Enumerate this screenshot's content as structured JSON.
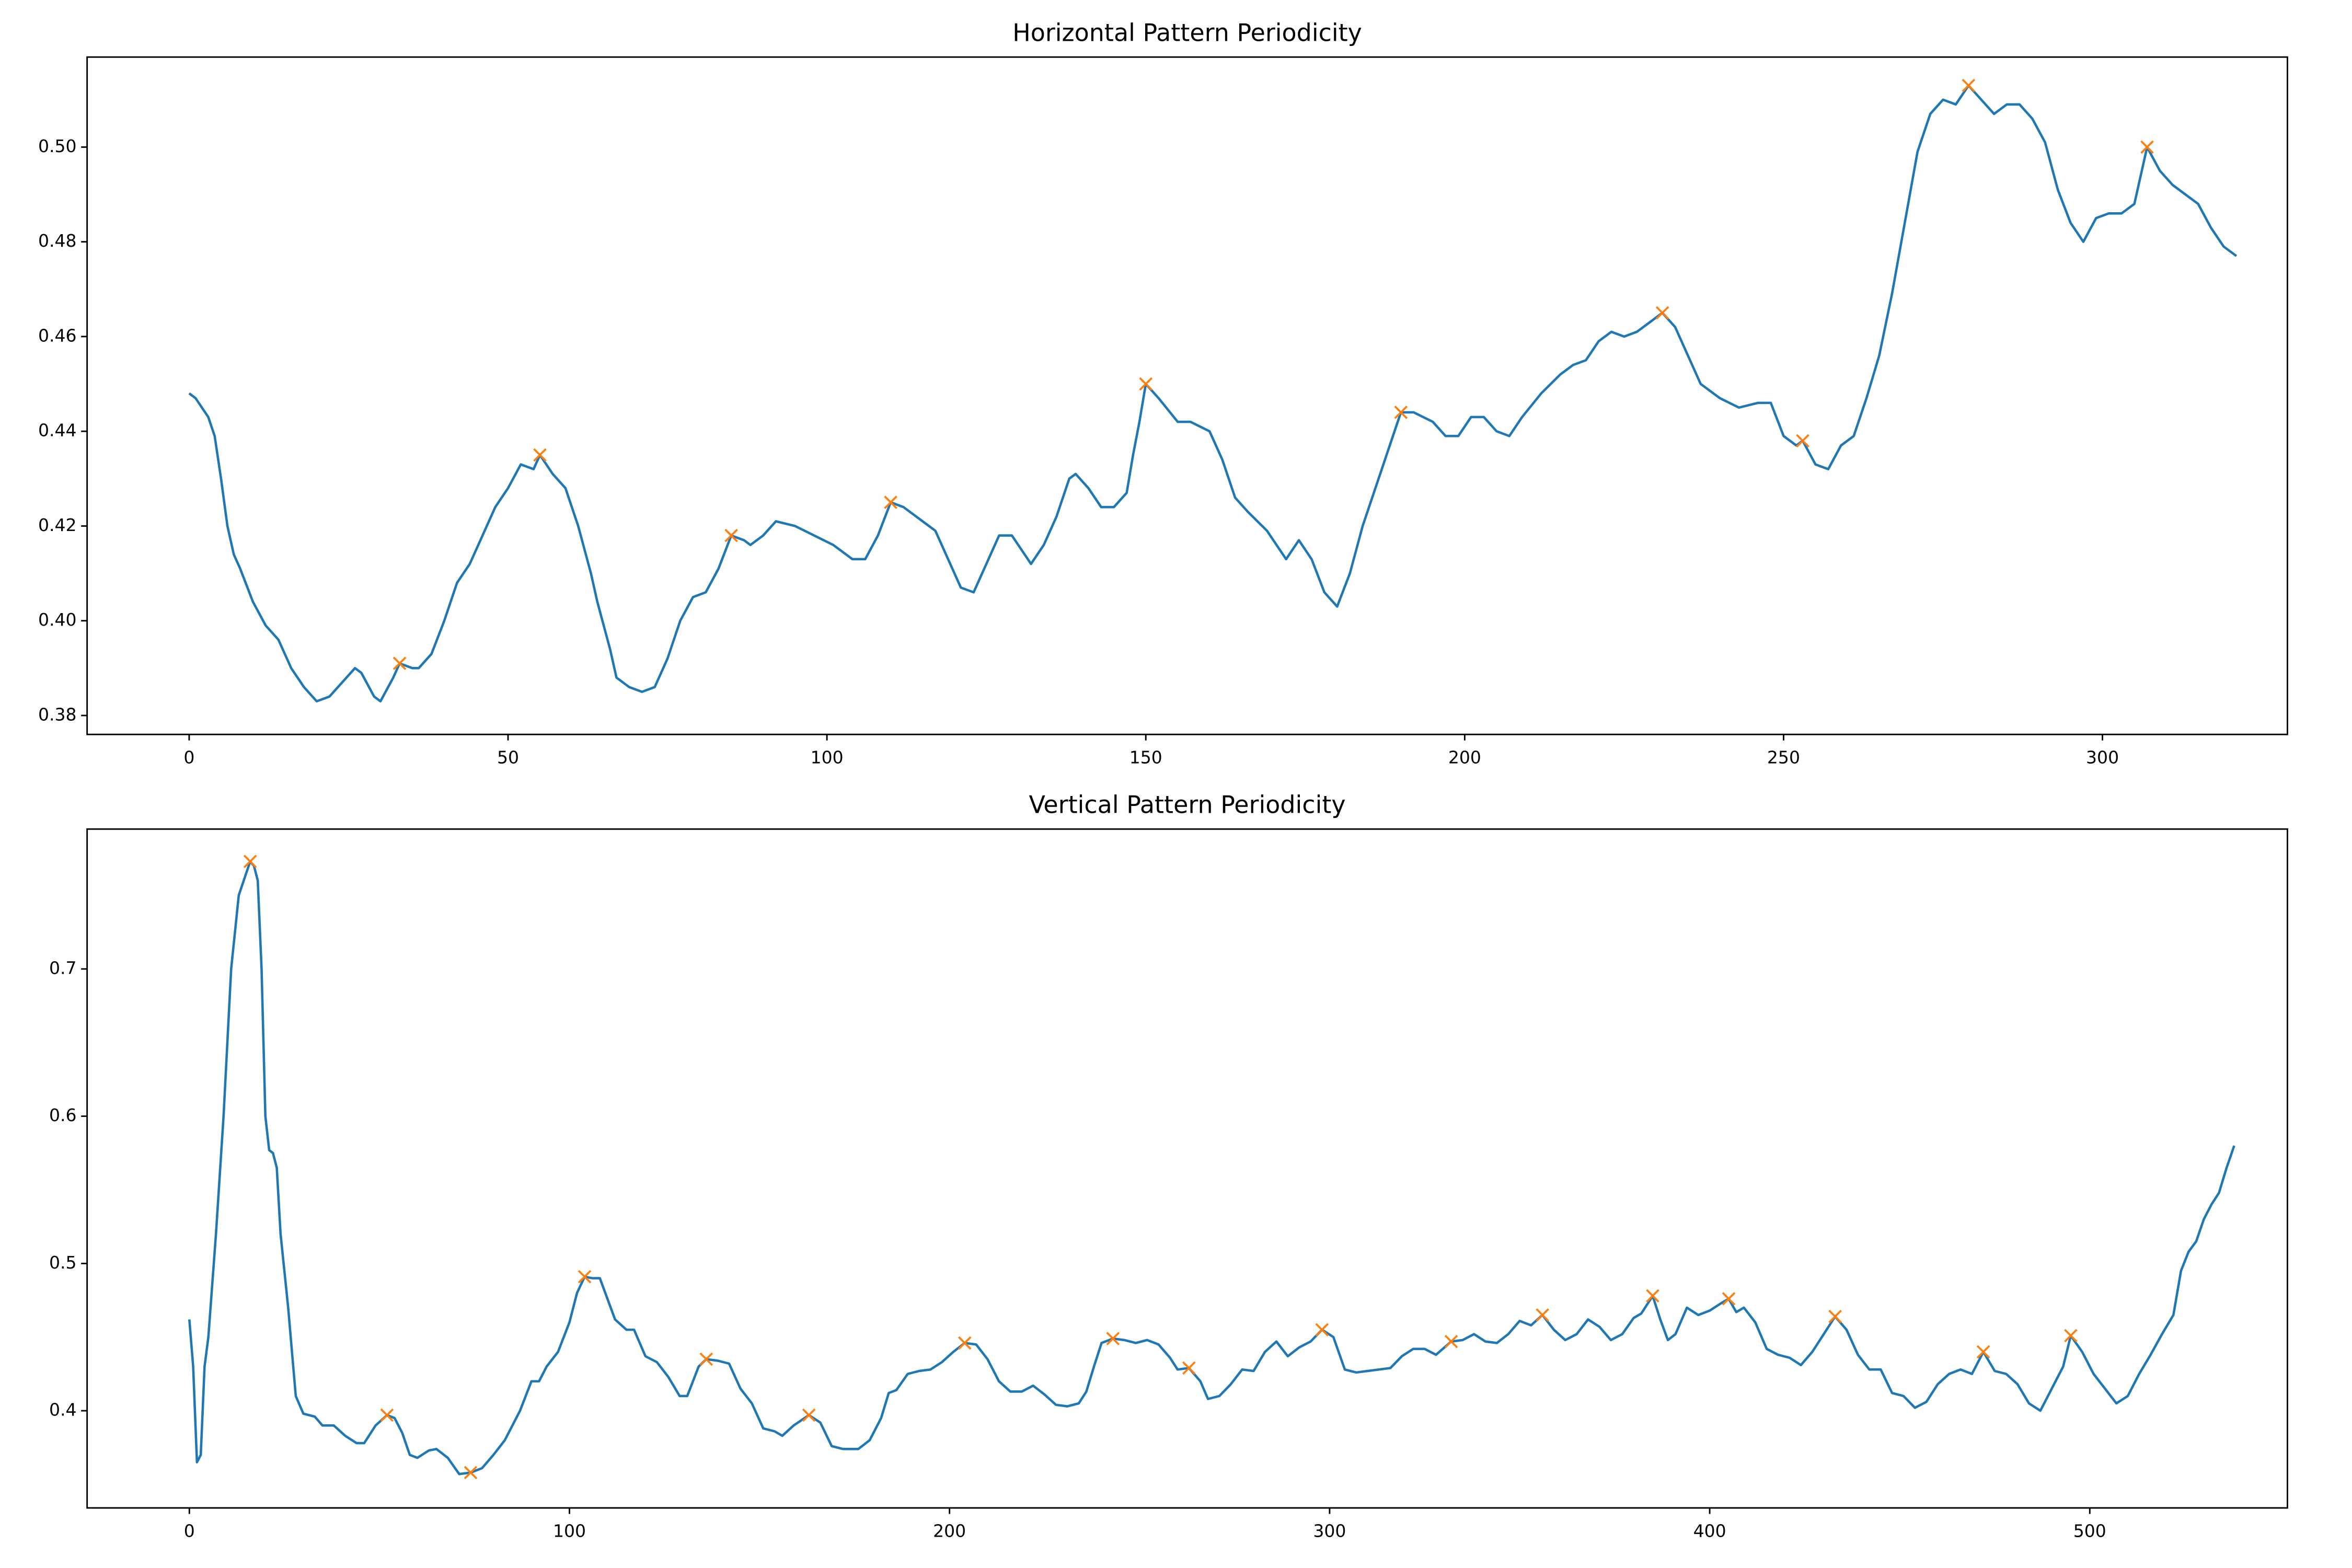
{
  "chart_data": [
    {
      "type": "line",
      "title": "Horizontal Pattern Periodicity",
      "xlim": [
        -16,
        329
      ],
      "xticks": [
        0,
        50,
        100,
        150,
        200,
        250,
        300
      ],
      "ylim": [
        0.376,
        0.519
      ],
      "yticks": [
        0.38,
        {
          "value": 0.4,
          "label": "0.40"
        },
        0.42,
        0.44,
        0.46,
        0.48,
        {
          "value": 0.5,
          "label": "0.50"
        }
      ],
      "series": [
        {
          "color": "#1f77b4",
          "x": [
            0,
            1,
            3,
            4,
            5,
            6,
            7,
            8,
            10,
            12,
            14,
            16,
            18,
            20,
            22,
            24,
            26,
            27,
            29,
            30,
            32,
            33,
            35,
            36,
            38,
            40,
            42,
            44,
            46,
            48,
            50,
            52,
            54,
            55,
            57,
            59,
            61,
            63,
            64,
            66,
            67,
            69,
            71,
            73,
            75,
            77,
            79,
            81,
            83,
            85,
            87,
            88,
            90,
            92,
            95,
            98,
            101,
            104,
            106,
            108,
            110,
            112,
            115,
            117,
            119,
            121,
            123,
            125,
            127,
            129,
            131,
            132,
            134,
            136,
            138,
            139,
            141,
            143,
            145,
            147,
            148,
            149,
            150,
            152,
            155,
            157,
            160,
            162,
            164,
            166,
            169,
            171,
            172,
            174,
            176,
            178,
            180,
            182,
            184,
            186,
            188,
            190,
            192,
            195,
            197,
            199,
            201,
            203,
            205,
            207,
            209,
            212,
            215,
            217,
            219,
            221,
            223,
            225,
            227,
            229,
            231,
            233,
            235,
            237,
            240,
            243,
            246,
            248,
            250,
            252,
            253,
            255,
            257,
            259,
            261,
            263,
            265,
            267,
            269,
            271,
            273,
            275,
            277,
            279,
            281,
            283,
            285,
            287,
            289,
            291,
            293,
            295,
            297,
            299,
            301,
            303,
            305,
            307,
            309,
            311,
            313,
            315,
            317,
            319,
            321
          ],
          "values": [
            0.448,
            0.447,
            0.443,
            0.439,
            0.43,
            0.42,
            0.414,
            0.411,
            0.404,
            0.399,
            0.396,
            0.39,
            0.386,
            0.383,
            0.384,
            0.387,
            0.39,
            0.389,
            0.384,
            0.383,
            0.388,
            0.391,
            0.39,
            0.39,
            0.393,
            0.4,
            0.408,
            0.412,
            0.418,
            0.424,
            0.428,
            0.433,
            0.432,
            0.435,
            0.431,
            0.428,
            0.42,
            0.41,
            0.404,
            0.394,
            0.388,
            0.386,
            0.385,
            0.386,
            0.392,
            0.4,
            0.405,
            0.406,
            0.411,
            0.418,
            0.417,
            0.416,
            0.418,
            0.421,
            0.42,
            0.418,
            0.416,
            0.413,
            0.413,
            0.418,
            0.425,
            0.424,
            0.421,
            0.419,
            0.413,
            0.407,
            0.406,
            0.412,
            0.418,
            0.418,
            0.414,
            0.412,
            0.416,
            0.422,
            0.43,
            0.431,
            0.428,
            0.424,
            0.424,
            0.427,
            0.435,
            0.442,
            0.45,
            0.447,
            0.442,
            0.442,
            0.44,
            0.434,
            0.426,
            0.423,
            0.419,
            0.415,
            0.413,
            0.417,
            0.413,
            0.406,
            0.403,
            0.41,
            0.42,
            0.428,
            0.436,
            0.444,
            0.444,
            0.442,
            0.439,
            0.439,
            0.443,
            0.443,
            0.44,
            0.439,
            0.443,
            0.448,
            0.452,
            0.454,
            0.455,
            0.459,
            0.461,
            0.46,
            0.461,
            0.463,
            0.465,
            0.462,
            0.456,
            0.45,
            0.447,
            0.445,
            0.446,
            0.446,
            0.439,
            0.437,
            0.438,
            0.433,
            0.432,
            0.437,
            0.439,
            0.447,
            0.456,
            0.469,
            0.484,
            0.499,
            0.507,
            0.51,
            0.509,
            0.513,
            0.51,
            0.507,
            0.509,
            0.509,
            0.506,
            0.501,
            0.491,
            0.484,
            0.48,
            0.485,
            0.486,
            0.486,
            0.488,
            0.5,
            0.495,
            0.492,
            0.49,
            0.488,
            0.483,
            0.479,
            0.477
          ]
        }
      ],
      "markers": {
        "color": "#ff7f0e",
        "x": [
          33,
          55,
          85,
          110,
          150,
          190,
          231,
          253,
          279,
          307
        ],
        "values": [
          0.391,
          0.435,
          0.418,
          0.425,
          0.45,
          0.444,
          0.465,
          0.438,
          0.513,
          0.5
        ]
      }
    },
    {
      "type": "line",
      "title": "Vertical Pattern Periodicity",
      "xlim": [
        -26.9,
        552
      ],
      "xticks": [
        0,
        100,
        200,
        300,
        400,
        500
      ],
      "ylim": [
        0.334,
        0.795
      ],
      "yticks": [
        0.4,
        0.5,
        0.6,
        0.7
      ],
      "series": [
        {
          "color": "#1f77b4",
          "x": [
            0,
            1,
            2,
            3,
            4,
            5,
            7,
            9,
            11,
            13,
            16,
            17,
            18,
            19,
            20,
            21,
            22,
            23,
            24,
            26,
            28,
            30,
            33,
            35,
            38,
            41,
            44,
            46,
            49,
            52,
            54,
            56,
            58,
            60,
            63,
            65,
            68,
            71,
            74,
            77,
            80,
            83,
            87,
            90,
            92,
            94,
            97,
            100,
            102,
            104,
            106,
            108,
            110,
            112,
            115,
            117,
            120,
            123,
            126,
            129,
            131,
            134,
            136,
            139,
            142,
            145,
            148,
            151,
            154,
            156,
            159,
            163,
            166,
            169,
            172,
            176,
            179,
            182,
            184,
            186,
            189,
            192,
            195,
            198,
            201,
            204,
            207,
            210,
            213,
            216,
            219,
            222,
            225,
            228,
            231,
            234,
            236,
            238,
            240,
            243,
            246,
            249,
            252,
            255,
            258,
            260,
            263,
            266,
            268,
            271,
            274,
            277,
            280,
            283,
            286,
            289,
            292,
            295,
            298,
            301,
            304,
            307,
            310,
            313,
            316,
            319,
            322,
            325,
            328,
            332,
            335,
            338,
            341,
            344,
            347,
            350,
            353,
            356,
            359,
            362,
            365,
            368,
            371,
            374,
            377,
            380,
            382,
            385,
            387,
            389,
            391,
            394,
            397,
            400,
            403,
            405,
            407,
            409,
            412,
            415,
            418,
            421,
            424,
            427,
            430,
            433,
            436,
            439,
            442,
            445,
            448,
            451,
            454,
            457,
            460,
            463,
            466,
            469,
            472,
            475,
            478,
            481,
            484,
            487,
            490,
            493,
            495,
            498,
            501,
            504,
            507,
            510,
            513,
            516,
            519,
            522,
            524,
            526,
            528,
            530,
            532,
            534,
            536,
            538
          ],
          "values": [
            0.462,
            0.43,
            0.365,
            0.37,
            0.43,
            0.45,
            0.52,
            0.6,
            0.7,
            0.75,
            0.773,
            0.77,
            0.76,
            0.7,
            0.6,
            0.577,
            0.575,
            0.565,
            0.52,
            0.47,
            0.41,
            0.398,
            0.396,
            0.39,
            0.39,
            0.383,
            0.378,
            0.378,
            0.39,
            0.397,
            0.395,
            0.385,
            0.37,
            0.368,
            0.373,
            0.374,
            0.368,
            0.357,
            0.358,
            0.361,
            0.37,
            0.38,
            0.4,
            0.42,
            0.42,
            0.43,
            0.44,
            0.46,
            0.48,
            0.491,
            0.49,
            0.49,
            0.476,
            0.462,
            0.455,
            0.455,
            0.437,
            0.433,
            0.423,
            0.41,
            0.41,
            0.43,
            0.435,
            0.434,
            0.432,
            0.415,
            0.405,
            0.388,
            0.386,
            0.383,
            0.39,
            0.397,
            0.392,
            0.376,
            0.374,
            0.374,
            0.38,
            0.395,
            0.412,
            0.414,
            0.425,
            0.427,
            0.428,
            0.433,
            0.44,
            0.446,
            0.445,
            0.435,
            0.42,
            0.413,
            0.413,
            0.417,
            0.411,
            0.404,
            0.403,
            0.405,
            0.413,
            0.43,
            0.446,
            0.449,
            0.448,
            0.446,
            0.448,
            0.445,
            0.436,
            0.428,
            0.429,
            0.42,
            0.408,
            0.41,
            0.418,
            0.428,
            0.427,
            0.44,
            0.447,
            0.437,
            0.443,
            0.447,
            0.455,
            0.45,
            0.428,
            0.426,
            0.427,
            0.428,
            0.429,
            0.437,
            0.442,
            0.442,
            0.438,
            0.447,
            0.448,
            0.452,
            0.447,
            0.446,
            0.452,
            0.461,
            0.458,
            0.465,
            0.455,
            0.448,
            0.452,
            0.462,
            0.457,
            0.448,
            0.452,
            0.463,
            0.466,
            0.478,
            0.462,
            0.448,
            0.452,
            0.47,
            0.465,
            0.468,
            0.473,
            0.476,
            0.467,
            0.47,
            0.46,
            0.442,
            0.438,
            0.436,
            0.431,
            0.44,
            0.452,
            0.464,
            0.455,
            0.438,
            0.428,
            0.428,
            0.412,
            0.41,
            0.402,
            0.406,
            0.418,
            0.425,
            0.428,
            0.425,
            0.44,
            0.427,
            0.425,
            0.418,
            0.405,
            0.4,
            0.415,
            0.43,
            0.451,
            0.44,
            0.425,
            0.415,
            0.405,
            0.41,
            0.425,
            0.438,
            0.452,
            0.465,
            0.495,
            0.508,
            0.515,
            0.53,
            0.54,
            0.548,
            0.565,
            0.58
          ]
        }
      ],
      "markers": {
        "color": "#ff7f0e",
        "x": [
          16,
          52,
          74,
          104,
          136,
          163,
          204,
          243,
          263,
          298,
          332,
          356,
          385,
          405,
          433,
          472,
          495
        ],
        "values": [
          0.773,
          0.397,
          0.358,
          0.491,
          0.435,
          0.397,
          0.446,
          0.449,
          0.429,
          0.455,
          0.447,
          0.465,
          0.478,
          0.476,
          0.464,
          0.44,
          0.451
        ]
      }
    }
  ]
}
